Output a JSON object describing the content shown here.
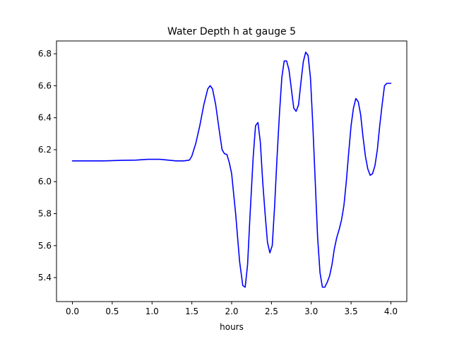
{
  "chart_data": {
    "type": "line",
    "title": "Water Depth h at gauge 5",
    "xlabel": "hours",
    "ylabel": "",
    "xlim": [
      -0.2,
      4.2
    ],
    "ylim": [
      5.25,
      6.88
    ],
    "xticks": [
      0.0,
      0.5,
      1.0,
      1.5,
      2.0,
      2.5,
      3.0,
      3.5,
      4.0
    ],
    "xtick_labels": [
      "0.0",
      "0.5",
      "1.0",
      "1.5",
      "2.0",
      "2.5",
      "3.0",
      "3.5",
      "4.0"
    ],
    "yticks": [
      5.4,
      5.6,
      5.8,
      6.0,
      6.2,
      6.4,
      6.6,
      6.8
    ],
    "ytick_labels": [
      "5.4",
      "5.6",
      "5.8",
      "6.0",
      "6.2",
      "6.4",
      "6.6",
      "6.8"
    ],
    "grid": false,
    "series": [
      {
        "color": "#0000ff",
        "x": [
          0.0,
          0.2,
          0.4,
          0.6,
          0.8,
          0.95,
          1.05,
          1.1,
          1.2,
          1.3,
          1.4,
          1.47,
          1.5,
          1.55,
          1.6,
          1.65,
          1.7,
          1.73,
          1.76,
          1.8,
          1.85,
          1.88,
          1.91,
          1.94,
          1.97,
          2.0,
          2.05,
          2.1,
          2.14,
          2.17,
          2.2,
          2.23,
          2.27,
          2.3,
          2.33,
          2.36,
          2.39,
          2.42,
          2.45,
          2.48,
          2.51,
          2.54,
          2.57,
          2.6,
          2.63,
          2.66,
          2.69,
          2.72,
          2.75,
          2.78,
          2.81,
          2.84,
          2.87,
          2.9,
          2.93,
          2.96,
          2.99,
          3.02,
          3.05,
          3.08,
          3.11,
          3.14,
          3.17,
          3.2,
          3.23,
          3.26,
          3.29,
          3.32,
          3.35,
          3.38,
          3.41,
          3.44,
          3.47,
          3.5,
          3.53,
          3.56,
          3.59,
          3.62,
          3.65,
          3.68,
          3.71,
          3.74,
          3.77,
          3.8,
          3.83,
          3.86,
          3.89,
          3.92,
          3.95,
          3.98,
          4.0
        ],
        "y": [
          6.13,
          6.13,
          6.13,
          6.133,
          6.135,
          6.14,
          6.14,
          6.14,
          6.135,
          6.13,
          6.13,
          6.135,
          6.16,
          6.24,
          6.35,
          6.48,
          6.58,
          6.6,
          6.58,
          6.48,
          6.3,
          6.2,
          6.175,
          6.17,
          6.12,
          6.05,
          5.8,
          5.5,
          5.35,
          5.34,
          5.48,
          5.78,
          6.15,
          6.35,
          6.37,
          6.25,
          6.0,
          5.8,
          5.62,
          5.555,
          5.6,
          5.85,
          6.15,
          6.42,
          6.65,
          6.755,
          6.755,
          6.7,
          6.58,
          6.46,
          6.44,
          6.48,
          6.62,
          6.75,
          6.81,
          6.79,
          6.65,
          6.35,
          6.0,
          5.65,
          5.43,
          5.34,
          5.34,
          5.37,
          5.41,
          5.48,
          5.58,
          5.65,
          5.7,
          5.76,
          5.85,
          6.0,
          6.18,
          6.35,
          6.46,
          6.52,
          6.5,
          6.42,
          6.28,
          6.16,
          6.08,
          6.04,
          6.05,
          6.1,
          6.2,
          6.35,
          6.48,
          6.6,
          6.615,
          6.615,
          6.615
        ]
      }
    ]
  }
}
